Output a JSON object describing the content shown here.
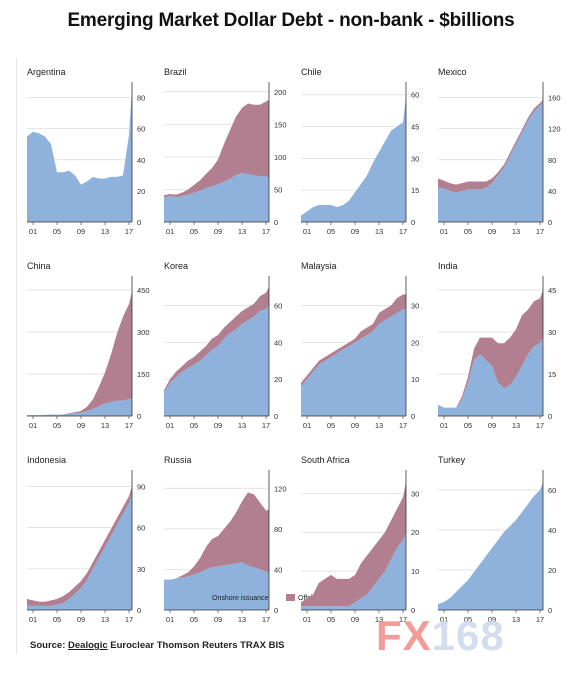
{
  "title": "Emerging Market Dollar Debt - non-bank - $billions",
  "source": {
    "prefix": "Source: ",
    "dealogic": "Dealogic",
    "rest": " Euroclear Thomson Reuters TRAX BIS"
  },
  "watermark": {
    "part1": "FX",
    "part2": "168"
  },
  "colors": {
    "onshore": "#8fb2dc",
    "offshore": "#b17f8f",
    "grid": "#dadada",
    "axis": "#333333"
  },
  "chart_data": [
    {
      "type": "area",
      "title": "Argentina",
      "x": [
        2000,
        2001,
        2002,
        2003,
        2004,
        2005,
        2006,
        2007,
        2008,
        2009,
        2010,
        2011,
        2012,
        2013,
        2014,
        2015,
        2016,
        2017,
        2017.5
      ],
      "yticks": [
        0,
        20,
        40,
        60,
        80
      ],
      "ylim": [
        0,
        90
      ],
      "xticks": [
        "01",
        "05",
        "09",
        "13",
        "17"
      ],
      "series": [
        {
          "name": "Onshore issuance",
          "values": [
            55,
            58,
            57,
            55,
            50,
            32,
            32,
            33,
            30,
            24,
            26,
            29,
            28,
            28,
            29,
            29,
            30,
            56,
            86
          ]
        },
        {
          "name": "Offshore issuance",
          "values": [
            0,
            0,
            0,
            0,
            0,
            0,
            0,
            0,
            0,
            0,
            0,
            0,
            0,
            0,
            0,
            0,
            0,
            0,
            0
          ]
        }
      ]
    },
    {
      "type": "area",
      "title": "Brazil",
      "x": [
        2000,
        2001,
        2002,
        2003,
        2004,
        2005,
        2006,
        2007,
        2008,
        2009,
        2010,
        2011,
        2012,
        2013,
        2014,
        2015,
        2016,
        2017,
        2017.5
      ],
      "yticks": [
        0,
        50,
        100,
        150,
        200
      ],
      "ylim": [
        0,
        215
      ],
      "xticks": [
        "01",
        "05",
        "09",
        "13",
        "17"
      ],
      "series": [
        {
          "name": "Onshore issuance",
          "values": [
            38,
            40,
            38,
            40,
            42,
            45,
            48,
            52,
            55,
            58,
            62,
            66,
            72,
            75,
            74,
            72,
            70,
            70,
            68
          ]
        },
        {
          "name": "Offshore issuance",
          "values": [
            3,
            3,
            4,
            5,
            8,
            12,
            16,
            22,
            28,
            38,
            58,
            75,
            90,
            100,
            108,
            108,
            110,
            115,
            120
          ]
        }
      ]
    },
    {
      "type": "area",
      "title": "Chile",
      "x": [
        2000,
        2001,
        2002,
        2003,
        2004,
        2005,
        2006,
        2007,
        2008,
        2009,
        2010,
        2011,
        2012,
        2013,
        2014,
        2015,
        2016,
        2017,
        2017.5
      ],
      "yticks": [
        0,
        15,
        30,
        45,
        60
      ],
      "ylim": [
        0,
        66
      ],
      "xticks": [
        "01",
        "05",
        "09",
        "13",
        "17"
      ],
      "series": [
        {
          "name": "Onshore issuance",
          "values": [
            3,
            5,
            7,
            8,
            8,
            8,
            7,
            8,
            10,
            14,
            18,
            22,
            28,
            33,
            38,
            43,
            45,
            47,
            59
          ]
        },
        {
          "name": "Offshore issuance",
          "values": [
            0,
            0,
            0,
            0,
            0,
            0,
            0,
            0,
            0,
            0,
            0,
            0,
            0,
            0,
            0,
            0,
            0,
            0,
            0
          ]
        }
      ]
    },
    {
      "type": "area",
      "title": "Mexico",
      "x": [
        2000,
        2001,
        2002,
        2003,
        2004,
        2005,
        2006,
        2007,
        2008,
        2009,
        2010,
        2011,
        2012,
        2013,
        2014,
        2015,
        2016,
        2017,
        2017.5
      ],
      "yticks": [
        0,
        40,
        80,
        120,
        160
      ],
      "ylim": [
        0,
        180
      ],
      "xticks": [
        "01",
        "05",
        "09",
        "13",
        "17"
      ],
      "series": [
        {
          "name": "Onshore issuance",
          "values": [
            44,
            43,
            40,
            38,
            40,
            42,
            42,
            42,
            44,
            50,
            60,
            70,
            85,
            100,
            115,
            130,
            142,
            150,
            155
          ]
        },
        {
          "name": "Offshore issuance",
          "values": [
            12,
            10,
            10,
            10,
            10,
            10,
            10,
            10,
            8,
            6,
            4,
            4,
            4,
            4,
            4,
            4,
            4,
            3,
            2
          ]
        }
      ]
    },
    {
      "type": "area",
      "title": "China",
      "x": [
        2000,
        2001,
        2002,
        2003,
        2004,
        2005,
        2006,
        2007,
        2008,
        2009,
        2010,
        2011,
        2012,
        2013,
        2014,
        2015,
        2016,
        2017,
        2017.5
      ],
      "yticks": [
        0,
        150,
        300,
        450
      ],
      "ylim": [
        0,
        500
      ],
      "xticks": [
        "01",
        "05",
        "09",
        "13",
        "17"
      ],
      "series": [
        {
          "name": "Onshore issuance",
          "values": [
            3,
            3,
            3,
            4,
            5,
            5,
            6,
            8,
            10,
            12,
            18,
            25,
            35,
            45,
            50,
            55,
            55,
            60,
            65
          ]
        },
        {
          "name": "Offshore issuance",
          "values": [
            0,
            0,
            0,
            0,
            0,
            0,
            0,
            2,
            4,
            6,
            15,
            35,
            70,
            110,
            170,
            240,
            300,
            340,
            380
          ]
        }
      ]
    },
    {
      "type": "area",
      "title": "Korea",
      "x": [
        2000,
        2001,
        2002,
        2003,
        2004,
        2005,
        2006,
        2007,
        2008,
        2009,
        2010,
        2011,
        2012,
        2013,
        2014,
        2015,
        2016,
        2017,
        2017.5
      ],
      "yticks": [
        0,
        20,
        40,
        60
      ],
      "ylim": [
        0,
        76
      ],
      "xticks": [
        "01",
        "05",
        "09",
        "13",
        "17"
      ],
      "series": [
        {
          "name": "Onshore issuance",
          "values": [
            13,
            18,
            21,
            24,
            26,
            28,
            30,
            33,
            36,
            38,
            42,
            45,
            47,
            50,
            52,
            54,
            57,
            58,
            60
          ]
        },
        {
          "name": "Offshore issuance",
          "values": [
            1,
            2,
            3,
            3,
            4,
            4,
            5,
            5,
            6,
            6,
            6,
            6,
            7,
            7,
            7,
            7,
            8,
            9,
            10
          ]
        }
      ]
    },
    {
      "type": "area",
      "title": "Malaysia",
      "x": [
        2000,
        2001,
        2002,
        2003,
        2004,
        2005,
        2006,
        2007,
        2008,
        2009,
        2010,
        2011,
        2012,
        2013,
        2014,
        2015,
        2016,
        2017,
        2017.5
      ],
      "yticks": [
        0,
        10,
        20,
        30
      ],
      "ylim": [
        0,
        38
      ],
      "xticks": [
        "01",
        "05",
        "09",
        "13",
        "17"
      ],
      "series": [
        {
          "name": "Onshore issuance",
          "values": [
            8,
            10,
            12,
            14,
            15,
            16,
            17,
            18,
            19,
            20,
            21,
            22,
            23,
            25,
            26,
            27,
            28,
            29,
            29
          ]
        },
        {
          "name": "Offshore issuance",
          "values": [
            1,
            1,
            1,
            1,
            1,
            1,
            1,
            1,
            1,
            1,
            2,
            2,
            2,
            3,
            3,
            3,
            4,
            4,
            4
          ]
        }
      ]
    },
    {
      "type": "area",
      "title": "India",
      "x": [
        2000,
        2001,
        2002,
        2003,
        2004,
        2005,
        2006,
        2007,
        2008,
        2009,
        2010,
        2011,
        2012,
        2013,
        2014,
        2015,
        2016,
        2017,
        2017.5
      ],
      "yticks": [
        0,
        15,
        30,
        45
      ],
      "ylim": [
        0,
        50
      ],
      "xticks": [
        "01",
        "05",
        "09",
        "13",
        "17"
      ],
      "series": [
        {
          "name": "Onshore issuance",
          "values": [
            4,
            3,
            3,
            3,
            6,
            12,
            20,
            22,
            20,
            18,
            12,
            10,
            11,
            14,
            18,
            22,
            25,
            26,
            28
          ]
        },
        {
          "name": "Offshore issuance",
          "values": [
            0,
            0,
            0,
            0,
            1,
            2,
            4,
            6,
            8,
            10,
            14,
            16,
            17,
            17,
            18,
            16,
            16,
            16,
            17
          ]
        }
      ]
    },
    {
      "type": "area",
      "title": "Indonesia",
      "x": [
        2000,
        2001,
        2002,
        2003,
        2004,
        2005,
        2006,
        2007,
        2008,
        2009,
        2010,
        2011,
        2012,
        2013,
        2014,
        2015,
        2016,
        2017,
        2017.5
      ],
      "yticks": [
        0,
        30,
        60,
        90
      ],
      "ylim": [
        0,
        102
      ],
      "xticks": [
        "01",
        "05",
        "09",
        "13",
        "17"
      ],
      "series": [
        {
          "name": "Onshore issuance",
          "values": [
            3,
            3,
            3,
            3,
            3,
            4,
            5,
            8,
            12,
            16,
            22,
            30,
            38,
            46,
            54,
            62,
            70,
            78,
            85
          ]
        },
        {
          "name": "Offshore issuance",
          "values": [
            5,
            4,
            3,
            3,
            4,
            4,
            5,
            5,
            5,
            5,
            5,
            5,
            5,
            5,
            5,
            5,
            5,
            5,
            5
          ]
        }
      ]
    },
    {
      "type": "area",
      "title": "Russia",
      "x": [
        2000,
        2001,
        2002,
        2003,
        2004,
        2005,
        2006,
        2007,
        2008,
        2009,
        2010,
        2011,
        2012,
        2013,
        2014,
        2015,
        2016,
        2017,
        2017.5
      ],
      "yticks": [
        0,
        40,
        80,
        120
      ],
      "ylim": [
        0,
        138
      ],
      "xticks": [
        "01",
        "05",
        "09",
        "13",
        "17"
      ],
      "series": [
        {
          "name": "Onshore issuance",
          "values": [
            30,
            30,
            31,
            32,
            33,
            35,
            37,
            40,
            42,
            43,
            44,
            45,
            46,
            47,
            44,
            42,
            40,
            38,
            37
          ]
        },
        {
          "name": "Offshore issuance",
          "values": [
            0,
            0,
            0,
            2,
            4,
            8,
            14,
            22,
            28,
            30,
            36,
            42,
            50,
            60,
            72,
            72,
            66,
            60,
            62
          ]
        }
      ]
    },
    {
      "type": "area",
      "title": "South Africa",
      "x": [
        2000,
        2001,
        2002,
        2003,
        2004,
        2005,
        2006,
        2007,
        2008,
        2009,
        2010,
        2011,
        2012,
        2013,
        2014,
        2015,
        2016,
        2017,
        2017.5
      ],
      "yticks": [
        0,
        10,
        20,
        30
      ],
      "ylim": [
        0,
        36
      ],
      "xticks": [
        "01",
        "05",
        "09",
        "13",
        "17"
      ],
      "series": [
        {
          "name": "Onshore issuance",
          "values": [
            1,
            1,
            1,
            1,
            1,
            1,
            1,
            1,
            1,
            2,
            3,
            4,
            6,
            8,
            10,
            13,
            16,
            18,
            20
          ]
        },
        {
          "name": "Offshore issuance",
          "values": [
            1,
            2,
            3,
            6,
            7,
            8,
            7,
            7,
            7,
            7,
            9,
            10,
            10,
            10,
            10,
            10,
            10,
            11,
            13
          ]
        }
      ]
    },
    {
      "type": "area",
      "title": "Turkey",
      "x": [
        2000,
        2001,
        2002,
        2003,
        2004,
        2005,
        2006,
        2007,
        2008,
        2009,
        2010,
        2011,
        2012,
        2013,
        2014,
        2015,
        2016,
        2017,
        2017.5
      ],
      "yticks": [
        0,
        20,
        40,
        60
      ],
      "ylim": [
        0,
        70
      ],
      "xticks": [
        "01",
        "05",
        "09",
        "13",
        "17"
      ],
      "series": [
        {
          "name": "Onshore issuance",
          "values": [
            3,
            4,
            6,
            9,
            12,
            15,
            19,
            23,
            27,
            31,
            35,
            39,
            42,
            45,
            49,
            53,
            57,
            60,
            64
          ]
        },
        {
          "name": "Offshore issuance",
          "values": [
            0,
            0,
            0,
            0,
            0,
            0,
            0,
            0,
            0,
            0,
            0,
            0,
            0,
            0,
            0,
            0,
            0,
            0,
            0
          ]
        }
      ]
    }
  ]
}
